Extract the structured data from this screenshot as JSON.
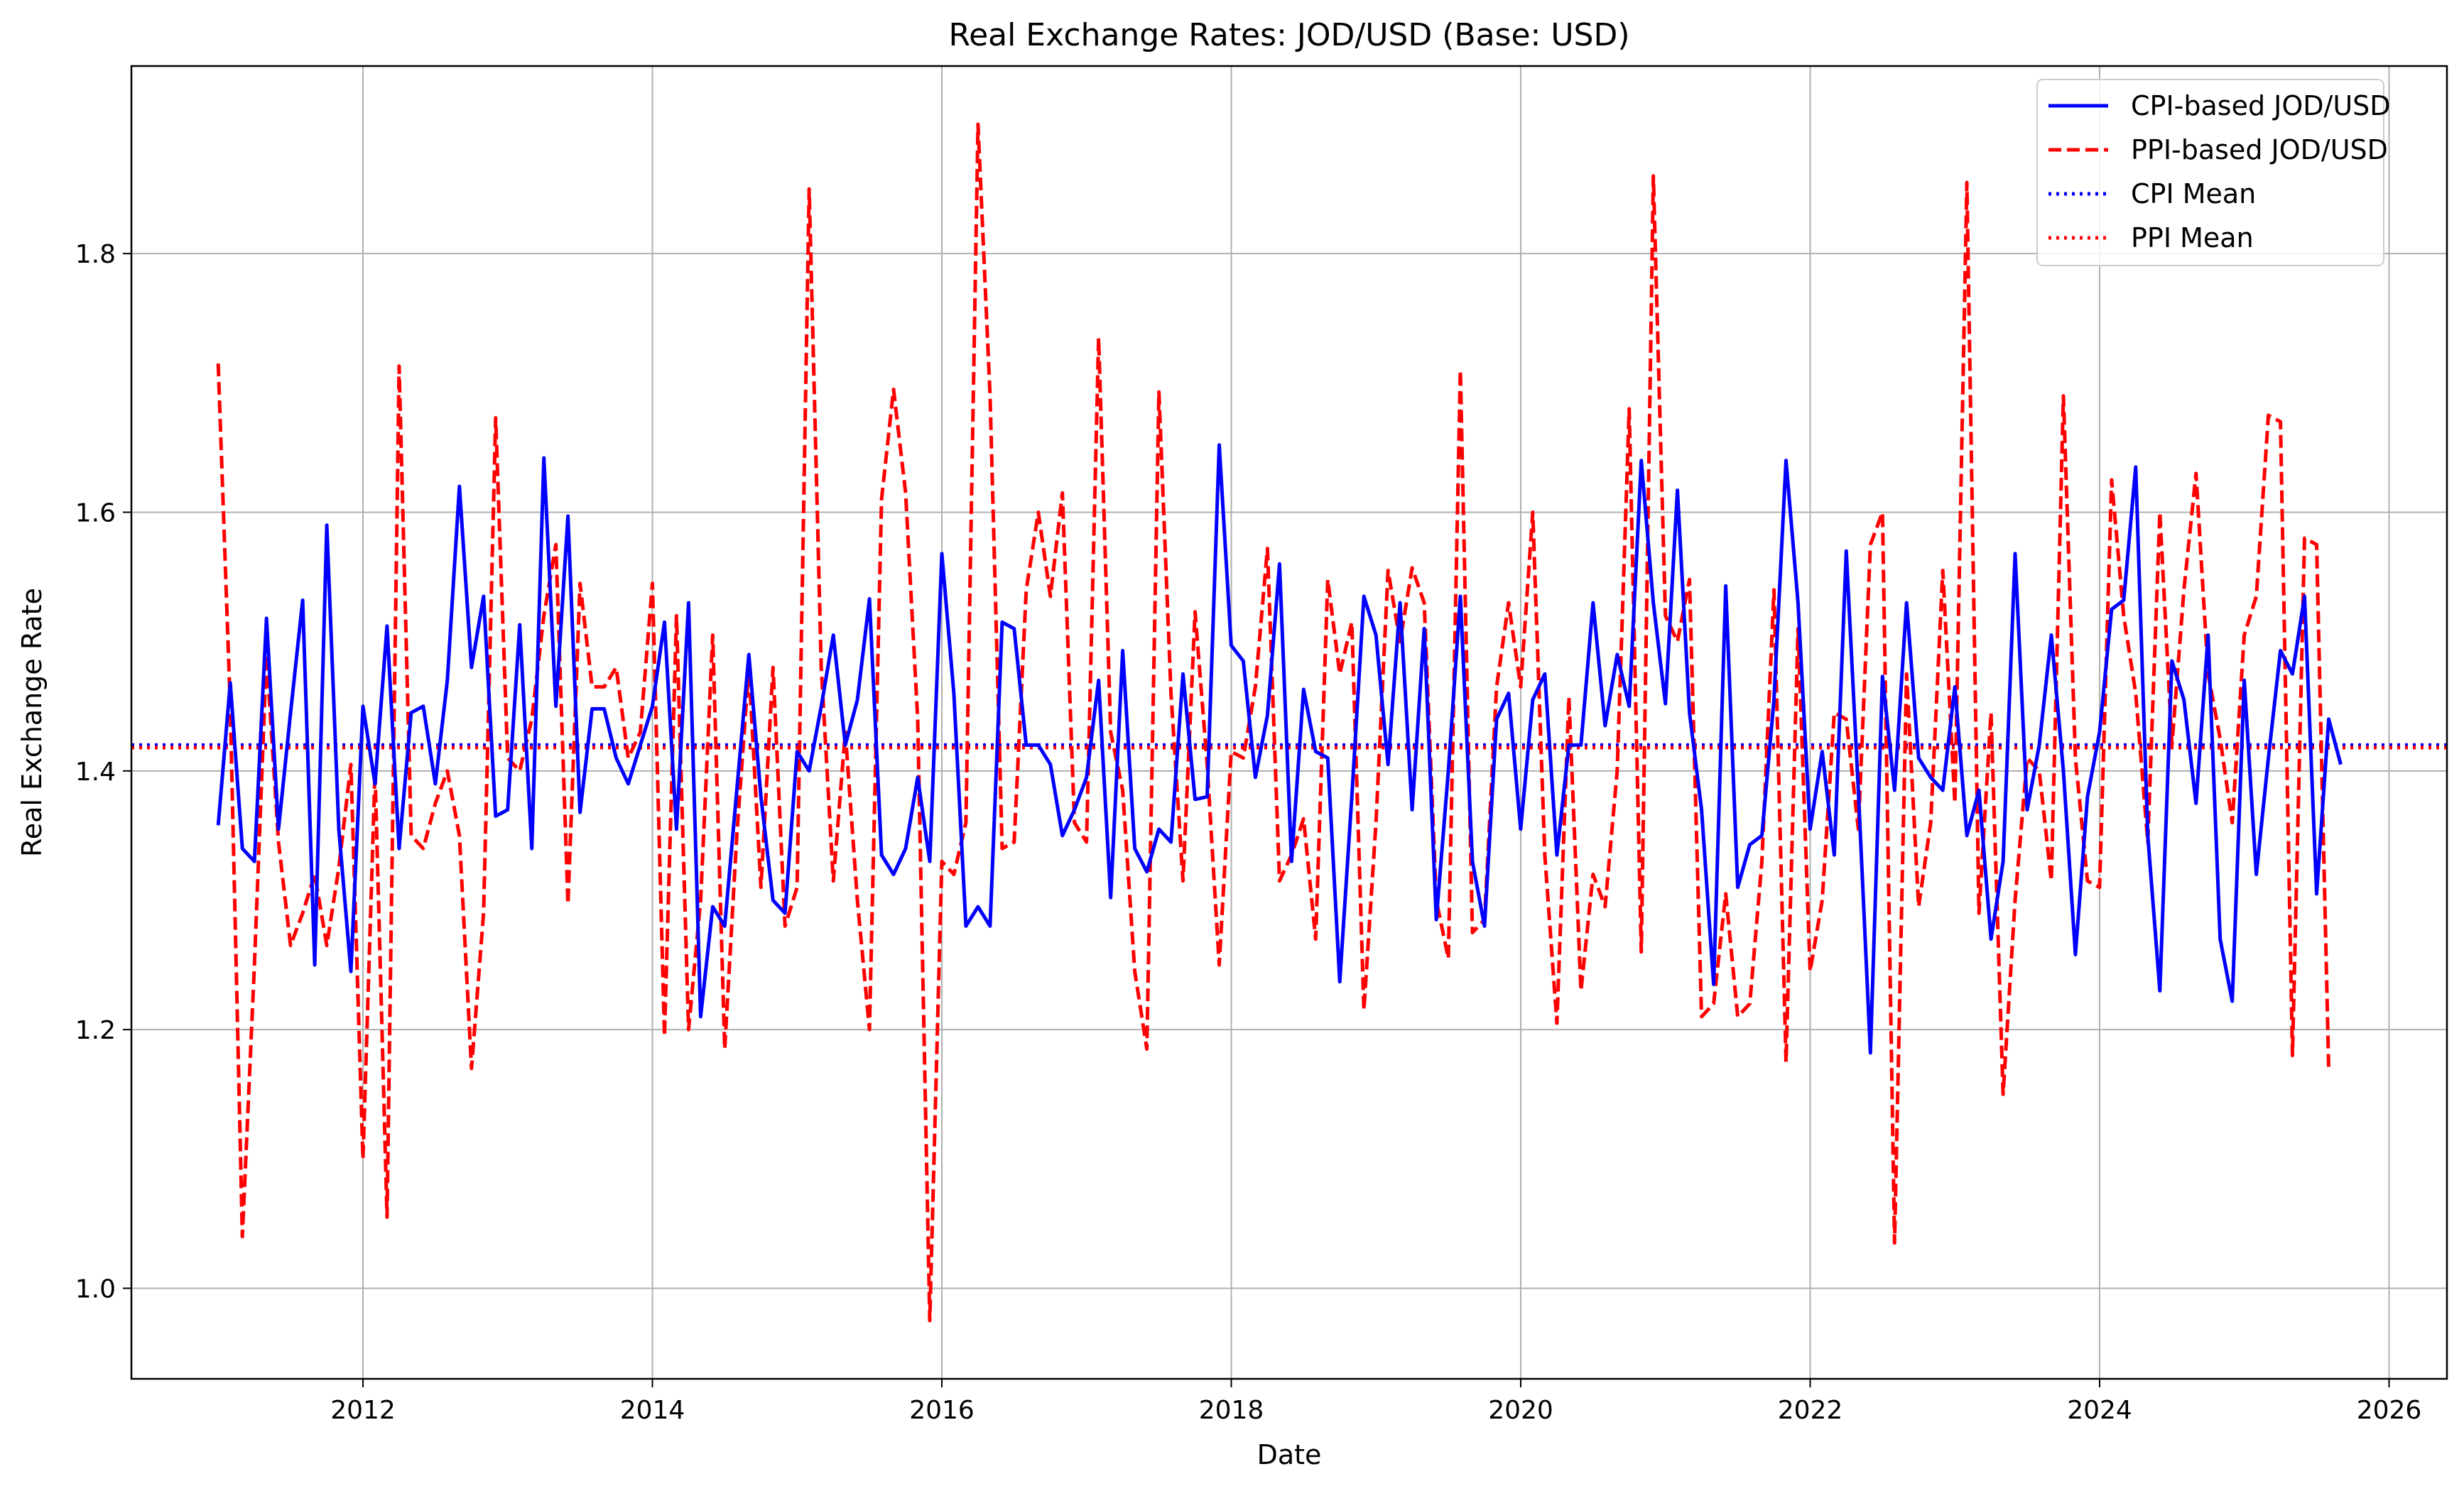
{
  "chart_data": {
    "type": "line",
    "title": "Real Exchange Rates: JOD/USD (Base: USD)",
    "xlabel": "Date",
    "ylabel": "Real Exchange Rate",
    "xlim": [
      2010.4,
      2026.4
    ],
    "ylim": [
      0.93,
      1.945
    ],
    "x_ticks": [
      2012,
      2014,
      2016,
      2018,
      2020,
      2022,
      2024,
      2026
    ],
    "y_ticks": [
      1.0,
      1.2,
      1.4,
      1.6,
      1.8
    ],
    "y_tick_labels": [
      "1.0",
      "1.2",
      "1.4",
      "1.6",
      "1.8"
    ],
    "grid": true,
    "legend_position": "top-right",
    "start_year": 2011.0,
    "step": 0.08333,
    "series": [
      {
        "name": "CPI-based JOD/USD",
        "color": "#0000ff",
        "style": "solid",
        "values": [
          1.358,
          1.468,
          1.34,
          1.33,
          1.518,
          1.355,
          1.445,
          1.532,
          1.25,
          1.59,
          1.355,
          1.245,
          1.45,
          1.39,
          1.512,
          1.34,
          1.445,
          1.45,
          1.39,
          1.47,
          1.62,
          1.48,
          1.535,
          1.365,
          1.37,
          1.513,
          1.34,
          1.642,
          1.45,
          1.597,
          1.368,
          1.448,
          1.448,
          1.41,
          1.39,
          1.42,
          1.45,
          1.515,
          1.355,
          1.53,
          1.21,
          1.295,
          1.28,
          1.385,
          1.49,
          1.38,
          1.3,
          1.29,
          1.415,
          1.4,
          1.45,
          1.505,
          1.42,
          1.455,
          1.533,
          1.335,
          1.32,
          1.34,
          1.395,
          1.33,
          1.568,
          1.46,
          1.28,
          1.295,
          1.28,
          1.515,
          1.51,
          1.42,
          1.42,
          1.405,
          1.35,
          1.37,
          1.395,
          1.47,
          1.302,
          1.493,
          1.34,
          1.322,
          1.355,
          1.345,
          1.475,
          1.378,
          1.38,
          1.652,
          1.497,
          1.485,
          1.395,
          1.443,
          1.56,
          1.33,
          1.463,
          1.415,
          1.41,
          1.237,
          1.38,
          1.535,
          1.505,
          1.405,
          1.53,
          1.37,
          1.51,
          1.285,
          1.4,
          1.535,
          1.33,
          1.28,
          1.44,
          1.46,
          1.355,
          1.455,
          1.475,
          1.335,
          1.42,
          1.42,
          1.53,
          1.435,
          1.49,
          1.45,
          1.64,
          1.53,
          1.452,
          1.617,
          1.445,
          1.37,
          1.235,
          1.543,
          1.31,
          1.343,
          1.35,
          1.455,
          1.64,
          1.53,
          1.355,
          1.415,
          1.335,
          1.57,
          1.385,
          1.182,
          1.473,
          1.385,
          1.53,
          1.41,
          1.395,
          1.385,
          1.465,
          1.35,
          1.385,
          1.27,
          1.33,
          1.568,
          1.37,
          1.42,
          1.505,
          1.4,
          1.258,
          1.38,
          1.43,
          1.525,
          1.532,
          1.635,
          1.35,
          1.23,
          1.485,
          1.455,
          1.375,
          1.505,
          1.27,
          1.222,
          1.47,
          1.32,
          1.41,
          1.493,
          1.475,
          1.535,
          1.305,
          1.44,
          1.405
        ]
      },
      {
        "name": "PPI-based JOD/USD",
        "color": "#ff0000",
        "style": "dashed",
        "values": [
          1.715,
          1.45,
          1.04,
          1.25,
          1.49,
          1.345,
          1.265,
          1.29,
          1.32,
          1.265,
          1.325,
          1.405,
          1.1,
          1.4,
          1.055,
          1.713,
          1.35,
          1.34,
          1.375,
          1.4,
          1.35,
          1.17,
          1.29,
          1.673,
          1.41,
          1.4,
          1.44,
          1.52,
          1.575,
          1.297,
          1.545,
          1.465,
          1.465,
          1.48,
          1.41,
          1.43,
          1.545,
          1.195,
          1.52,
          1.2,
          1.3,
          1.505,
          1.185,
          1.35,
          1.48,
          1.31,
          1.48,
          1.28,
          1.31,
          1.85,
          1.48,
          1.315,
          1.43,
          1.3,
          1.2,
          1.61,
          1.695,
          1.615,
          1.44,
          0.975,
          1.33,
          1.32,
          1.36,
          1.9,
          1.69,
          1.34,
          1.345,
          1.54,
          1.6,
          1.535,
          1.615,
          1.36,
          1.345,
          1.735,
          1.43,
          1.385,
          1.245,
          1.185,
          1.693,
          1.46,
          1.315,
          1.523,
          1.405,
          1.25,
          1.415,
          1.41,
          1.465,
          1.572,
          1.315,
          1.335,
          1.363,
          1.27,
          1.548,
          1.475,
          1.515,
          1.215,
          1.36,
          1.555,
          1.5,
          1.557,
          1.53,
          1.3,
          1.255,
          1.71,
          1.275,
          1.285,
          1.465,
          1.53,
          1.465,
          1.6,
          1.335,
          1.205,
          1.457,
          1.23,
          1.32,
          1.295,
          1.4,
          1.68,
          1.26,
          1.86,
          1.52,
          1.5,
          1.548,
          1.21,
          1.22,
          1.305,
          1.21,
          1.22,
          1.33,
          1.54,
          1.175,
          1.51,
          1.245,
          1.3,
          1.445,
          1.44,
          1.355,
          1.575,
          1.6,
          1.035,
          1.475,
          1.295,
          1.36,
          1.555,
          1.375,
          1.855,
          1.29,
          1.445,
          1.15,
          1.3,
          1.41,
          1.4,
          1.315,
          1.69,
          1.41,
          1.315,
          1.31,
          1.625,
          1.52,
          1.46,
          1.345,
          1.6,
          1.42,
          1.54,
          1.63,
          1.475,
          1.425,
          1.36,
          1.505,
          1.535,
          1.675,
          1.67,
          1.18,
          1.58,
          1.575,
          1.17
        ]
      },
      {
        "name": "CPI Mean",
        "color": "#0000ff",
        "style": "dotted",
        "value": 1.42
      },
      {
        "name": "PPI Mean",
        "color": "#ff0000",
        "style": "dotted",
        "value": 1.418
      }
    ]
  }
}
